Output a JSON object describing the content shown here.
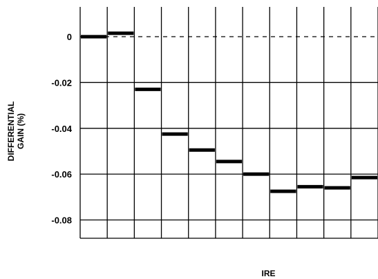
{
  "chart_data": {
    "type": "line",
    "title": "",
    "xlabel": "IRE",
    "ylabel_lines": [
      "DIFFERENTIAL",
      "GAIN (%)"
    ],
    "ylim": [
      -0.088,
      0.013
    ],
    "yticks": [
      0,
      -0.02,
      -0.04,
      -0.06,
      -0.08
    ],
    "ytick_labels": [
      "0",
      "-0.02",
      "-0.04",
      "-0.06",
      "-0.08"
    ],
    "num_steps": 11,
    "grid": true,
    "zero_reference_dashed": true,
    "series": [
      {
        "style": "step",
        "color": "#000000",
        "values": [
          0.0,
          0.0015,
          -0.023,
          -0.0425,
          -0.0495,
          -0.0545,
          -0.06,
          -0.0675,
          -0.0655,
          -0.066,
          -0.0615
        ]
      }
    ]
  }
}
